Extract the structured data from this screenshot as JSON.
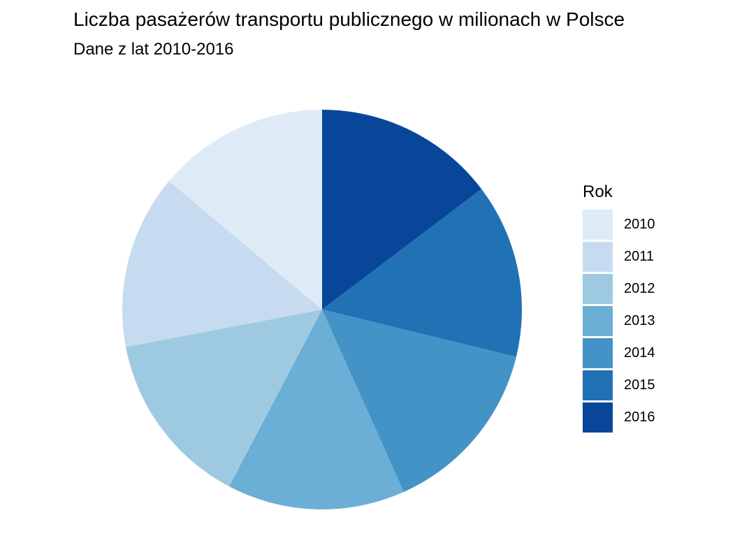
{
  "chart_data": {
    "type": "pie",
    "title": "Liczba pasażerów transportu publicznego w milionach w Polsce",
    "subtitle": "Dane z lat 2010-2016",
    "legend_title": "Rok",
    "legend_position": "right",
    "start": "top",
    "direction": "clockwise",
    "categories": [
      "2016",
      "2015",
      "2014",
      "2013",
      "2012",
      "2011",
      "2010"
    ],
    "values": [
      14.7,
      14.1,
      14.5,
      14.4,
      14.3,
      14.1,
      13.9
    ],
    "colors": [
      "#08469a",
      "#2171b5",
      "#4393c6",
      "#6baed6",
      "#9ecae1",
      "#c6dbef",
      "#deebf7"
    ],
    "legend": [
      {
        "label": "2010",
        "color": "#deebf7"
      },
      {
        "label": "2011",
        "color": "#c6dbef"
      },
      {
        "label": "2012",
        "color": "#9ecae1"
      },
      {
        "label": "2013",
        "color": "#6baed6"
      },
      {
        "label": "2014",
        "color": "#4393c6"
      },
      {
        "label": "2015",
        "color": "#2171b5"
      },
      {
        "label": "2016",
        "color": "#08469a"
      }
    ]
  }
}
